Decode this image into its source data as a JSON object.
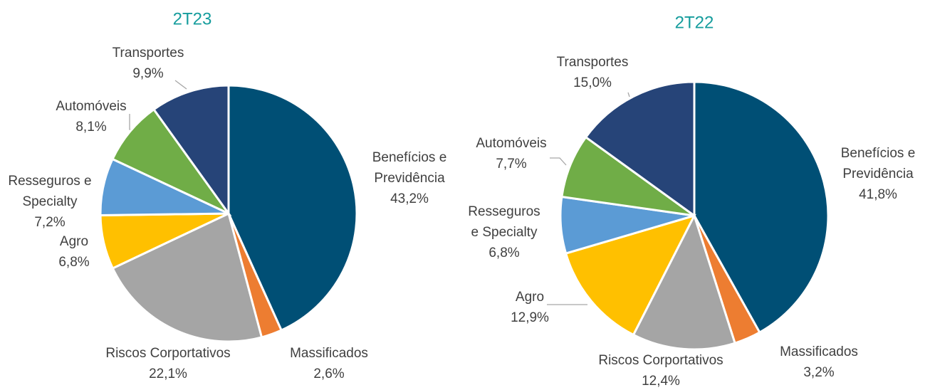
{
  "chart_data": [
    {
      "type": "pie",
      "title": "2T23",
      "categories": [
        "Benefícios e\nPrevidência",
        "Massificados",
        "Riscos Corportativos",
        "Agro",
        "Resseguros e\nSpecialty",
        "Automóveis",
        "Transportes"
      ],
      "values": [
        43.2,
        2.6,
        22.1,
        6.8,
        7.2,
        8.1,
        9.9
      ],
      "value_labels": [
        "43,2%",
        "2,6%",
        "22,1%",
        "6,8%",
        "7,2%",
        "8,1%",
        "9,9%"
      ],
      "colors": [
        "#004f75",
        "#ed7d31",
        "#a5a5a5",
        "#ffc000",
        "#5b9bd5",
        "#70ad47",
        "#264478"
      ]
    },
    {
      "type": "pie",
      "title": "2T22",
      "categories": [
        "Benefícios e\nPrevidência",
        "Massificados",
        "Riscos Corportativos",
        "Agro",
        "Resseguros\ne Specialty",
        "Automóveis",
        "Transportes"
      ],
      "values": [
        41.8,
        3.2,
        12.4,
        12.9,
        6.8,
        7.7,
        15.0
      ],
      "value_labels": [
        "41,8%",
        "3,2%",
        "12,4%",
        "12,9%",
        "6,8%",
        "7,7%",
        "15,0%"
      ],
      "colors": [
        "#004f75",
        "#ed7d31",
        "#a5a5a5",
        "#ffc000",
        "#5b9bd5",
        "#70ad47",
        "#264478"
      ]
    }
  ]
}
